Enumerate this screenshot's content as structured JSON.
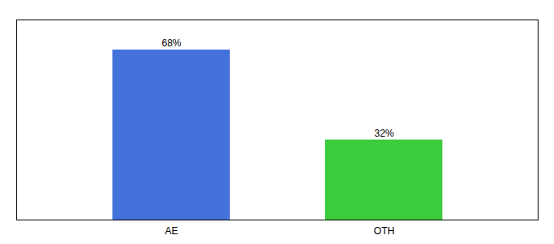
{
  "chart_data": {
    "type": "bar",
    "categories": [
      "AE",
      "OTH"
    ],
    "values": [
      68,
      32
    ],
    "value_labels": [
      "68%",
      "32%"
    ],
    "colors": [
      "#4472db",
      "#3dcc3d"
    ],
    "ylim": [
      0,
      80
    ],
    "data_labels": true,
    "tick_labels": "x",
    "grid": false
  }
}
